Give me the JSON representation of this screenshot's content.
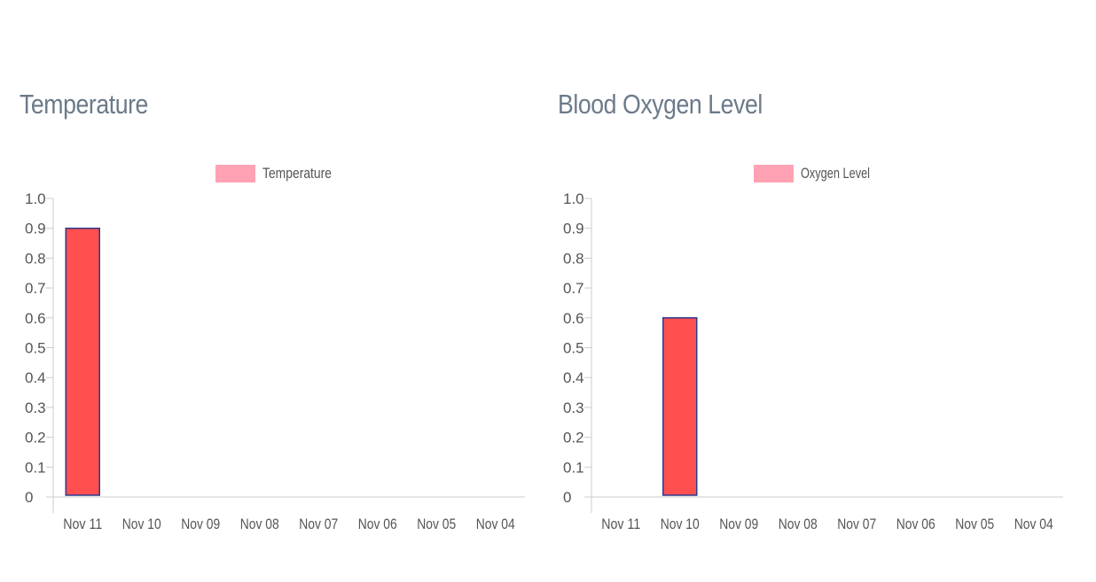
{
  "panels": [
    {
      "title": "Temperature"
    },
    {
      "title": "Blood Oxygen Level"
    }
  ],
  "chart_data": [
    {
      "type": "bar",
      "categories": [
        "Nov 11",
        "Nov 10",
        "Nov 09",
        "Nov 08",
        "Nov 07",
        "Nov 06",
        "Nov 05",
        "Nov 04"
      ],
      "series": [
        {
          "name": "Temperature",
          "values": [
            0.9,
            0,
            0,
            0,
            0,
            0,
            0,
            0
          ],
          "color": "#ff4f4f",
          "border": "#2b3a8f",
          "legend_color": "#ffa3b4"
        }
      ],
      "yticks": [
        "0",
        "0.1",
        "0.2",
        "0.3",
        "0.4",
        "0.5",
        "0.6",
        "0.7",
        "0.8",
        "0.9",
        "1.0"
      ],
      "ylim": [
        0,
        1
      ],
      "legend_position": "top-center",
      "grid": false
    },
    {
      "type": "bar",
      "categories": [
        "Nov 11",
        "Nov 10",
        "Nov 09",
        "Nov 08",
        "Nov 07",
        "Nov 06",
        "Nov 05",
        "Nov 04"
      ],
      "series": [
        {
          "name": "Oxygen Level",
          "values": [
            0,
            0.6,
            0,
            0,
            0,
            0,
            0,
            0
          ],
          "color": "#ff4f4f",
          "border": "#2b3a8f",
          "legend_color": "#ffa3b4"
        }
      ],
      "yticks": [
        "0",
        "0.1",
        "0.2",
        "0.3",
        "0.4",
        "0.5",
        "0.6",
        "0.7",
        "0.8",
        "0.9",
        "1.0"
      ],
      "ylim": [
        0,
        1
      ],
      "legend_position": "top-center",
      "grid": false
    }
  ]
}
